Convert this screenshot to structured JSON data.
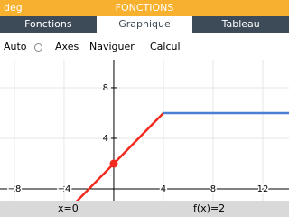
{
  "status_bar": {
    "angle": "deg",
    "title": "FONCTIONS"
  },
  "tabs": [
    "Fonctions",
    "Graphique",
    "Tableau"
  ],
  "active_tab": 1,
  "toolbar": {
    "auto": "Auto",
    "items": [
      "Axes",
      "Naviguer",
      "Calcul"
    ]
  },
  "chart_data": {
    "type": "line",
    "series": [
      {
        "color": "#f02a1e",
        "x": [
          -3,
          4
        ],
        "values": [
          -1,
          6
        ]
      },
      {
        "color": "#4b7fd6",
        "x": [
          4,
          15
        ],
        "values": [
          6,
          6
        ]
      }
    ],
    "cursor": {
      "x": 0,
      "y": 2,
      "color": "#f02a1e"
    },
    "xlim": [
      -9.16,
      14.11
    ],
    "ylim": [
      -0.93,
      10.21
    ],
    "xticks": [
      {
        "value": -8,
        "label": "−8"
      },
      {
        "value": -4,
        "label": "−4"
      },
      4,
      8,
      12
    ],
    "yticks": [
      4,
      8
    ],
    "grid": true
  },
  "banner": {
    "x": "x=0",
    "value": "f(x)=2"
  }
}
